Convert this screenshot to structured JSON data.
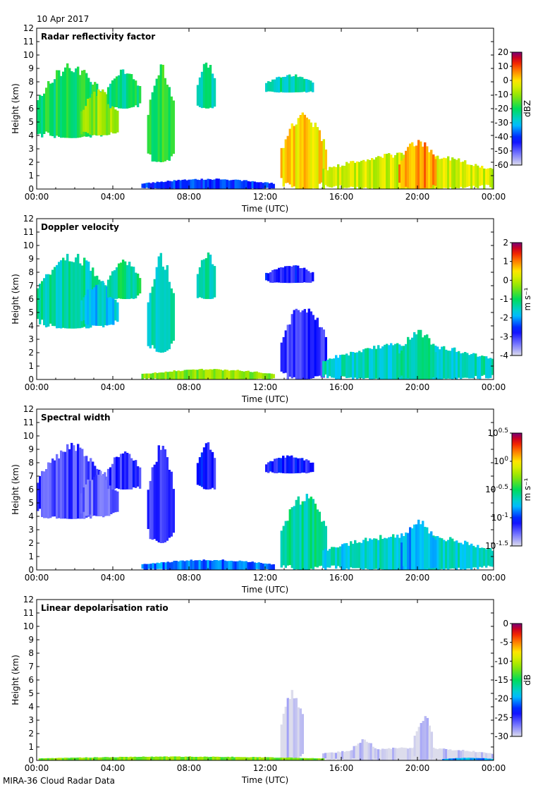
{
  "figure": {
    "date": "10 Apr 2017",
    "footer": "MIRA-36 Cloud Radar Data"
  },
  "chart_data": [
    {
      "type": "heatmap",
      "title": "Radar reflectivity factor",
      "xlabel": "Time (UTC)",
      "ylabel": "Height (km)",
      "xticks": [
        "00:00",
        "04:00",
        "08:00",
        "12:00",
        "16:00",
        "20:00",
        "00:00"
      ],
      "xlim_hours": [
        0,
        24
      ],
      "ylim": [
        0,
        12
      ],
      "yticks": [
        "0",
        "1",
        "2",
        "3",
        "4",
        "5",
        "6",
        "7",
        "8",
        "9",
        "10",
        "11",
        "12"
      ],
      "colorbar": {
        "unit_label": "dBZ",
        "ticks": [
          "20",
          "10",
          "0",
          "-10",
          "-20",
          "-30",
          "-40",
          "-50",
          "-60"
        ],
        "range": [
          -60,
          20
        ]
      },
      "echoes": [
        {
          "t0": 0.0,
          "t1": 3.6,
          "h0": 3.8,
          "h1": 9.5,
          "v": -20
        },
        {
          "t0": 2.3,
          "t1": 4.2,
          "h0": 4.0,
          "h1": 7.5,
          "v": -10
        },
        {
          "t0": 3.7,
          "t1": 5.4,
          "h0": 6.0,
          "h1": 9.0,
          "v": -22
        },
        {
          "t0": 5.8,
          "t1": 7.2,
          "h0": 2.0,
          "h1": 9.5,
          "v": -18
        },
        {
          "t0": 8.4,
          "t1": 9.4,
          "h0": 6.0,
          "h1": 9.6,
          "v": -25
        },
        {
          "t0": 12.0,
          "t1": 14.5,
          "h0": 7.2,
          "h1": 8.6,
          "v": -25
        },
        {
          "t0": 12.8,
          "t1": 15.2,
          "h0": 0.0,
          "h1": 5.8,
          "v": 0
        },
        {
          "t0": 15.0,
          "t1": 24.0,
          "h0": 0.0,
          "h1": 2.8,
          "v": -5
        },
        {
          "t0": 19.0,
          "t1": 21.0,
          "h0": 0.0,
          "h1": 3.8,
          "v": 5
        },
        {
          "t0": 5.5,
          "t1": 12.5,
          "h0": 0.0,
          "h1": 0.8,
          "v": -40
        }
      ]
    },
    {
      "type": "heatmap",
      "title": "Doppler velocity",
      "xlabel": "Time (UTC)",
      "ylabel": "Height (km)",
      "xticks": [
        "00:00",
        "04:00",
        "08:00",
        "12:00",
        "16:00",
        "20:00",
        "00:00"
      ],
      "xlim_hours": [
        0,
        24
      ],
      "ylim": [
        0,
        12
      ],
      "yticks": [
        "0",
        "1",
        "2",
        "3",
        "4",
        "5",
        "6",
        "7",
        "8",
        "9",
        "10",
        "11",
        "12"
      ],
      "colorbar": {
        "unit_label": "m s⁻¹",
        "ticks": [
          "2",
          "1",
          "0",
          "-1",
          "-2",
          "-3",
          "-4"
        ],
        "range": [
          -4,
          2
        ]
      },
      "echoes": [
        {
          "t0": 0.0,
          "t1": 3.6,
          "h0": 3.8,
          "h1": 9.5,
          "v": -1.4
        },
        {
          "t0": 2.3,
          "t1": 4.2,
          "h0": 4.0,
          "h1": 7.5,
          "v": -1.8
        },
        {
          "t0": 3.7,
          "t1": 5.4,
          "h0": 6.0,
          "h1": 9.0,
          "v": -1.2
        },
        {
          "t0": 5.8,
          "t1": 7.2,
          "h0": 2.0,
          "h1": 9.5,
          "v": -1.6
        },
        {
          "t0": 8.4,
          "t1": 9.4,
          "h0": 6.0,
          "h1": 9.6,
          "v": -1.3
        },
        {
          "t0": 12.0,
          "t1": 14.5,
          "h0": 7.2,
          "h1": 8.6,
          "v": -2.8
        },
        {
          "t0": 12.8,
          "t1": 15.2,
          "h0": 0.0,
          "h1": 5.8,
          "v": -3.0
        },
        {
          "t0": 15.0,
          "t1": 24.0,
          "h0": 0.0,
          "h1": 2.8,
          "v": -1.5
        },
        {
          "t0": 19.0,
          "t1": 21.0,
          "h0": 0.0,
          "h1": 3.8,
          "v": -1.2
        },
        {
          "t0": 5.5,
          "t1": 12.5,
          "h0": 0.0,
          "h1": 0.8,
          "v": -0.3
        }
      ]
    },
    {
      "type": "heatmap",
      "title": "Spectral width",
      "xlabel": "Time (UTC)",
      "ylabel": "Height (km)",
      "xticks": [
        "00:00",
        "04:00",
        "08:00",
        "12:00",
        "16:00",
        "20:00",
        "00:00"
      ],
      "xlim_hours": [
        0,
        24
      ],
      "ylim": [
        0,
        12
      ],
      "yticks": [
        "0",
        "1",
        "2",
        "3",
        "4",
        "5",
        "6",
        "7",
        "8",
        "9",
        "10",
        "11",
        "12"
      ],
      "colorbar": {
        "unit_label": "m s⁻¹",
        "ticks": [
          "10^0.5",
          "10^0",
          "10^-0.5",
          "10^-1",
          "10^-1.5"
        ],
        "range": [
          -1.5,
          0.5
        ]
      },
      "echoes": [
        {
          "t0": 0.0,
          "t1": 3.6,
          "h0": 3.8,
          "h1": 9.5,
          "v": -1.2
        },
        {
          "t0": 2.3,
          "t1": 4.2,
          "h0": 4.0,
          "h1": 7.5,
          "v": -1.25
        },
        {
          "t0": 3.7,
          "t1": 5.4,
          "h0": 6.0,
          "h1": 9.0,
          "v": -1.15
        },
        {
          "t0": 5.8,
          "t1": 7.2,
          "h0": 2.0,
          "h1": 9.5,
          "v": -1.2
        },
        {
          "t0": 8.4,
          "t1": 9.4,
          "h0": 6.0,
          "h1": 9.6,
          "v": -1.1
        },
        {
          "t0": 12.0,
          "t1": 14.5,
          "h0": 7.2,
          "h1": 8.6,
          "v": -1.1
        },
        {
          "t0": 12.8,
          "t1": 15.2,
          "h0": 0.0,
          "h1": 5.8,
          "v": -0.6
        },
        {
          "t0": 15.0,
          "t1": 24.0,
          "h0": 0.0,
          "h1": 2.8,
          "v": -0.7
        },
        {
          "t0": 19.0,
          "t1": 21.0,
          "h0": 0.0,
          "h1": 3.8,
          "v": -0.8
        },
        {
          "t0": 5.5,
          "t1": 12.5,
          "h0": 0.0,
          "h1": 0.8,
          "v": -0.9
        }
      ]
    },
    {
      "type": "heatmap",
      "title": "Linear depolarisation ratio",
      "xlabel": "Time (UTC)",
      "ylabel": "Height (km)",
      "xticks": [
        "00:00",
        "04:00",
        "08:00",
        "12:00",
        "16:00",
        "20:00",
        "00:00"
      ],
      "xlim_hours": [
        0,
        24
      ],
      "ylim": [
        0,
        12
      ],
      "yticks": [
        "0",
        "1",
        "2",
        "3",
        "4",
        "5",
        "6",
        "7",
        "8",
        "9",
        "10",
        "11",
        "12"
      ],
      "colorbar": {
        "unit_label": "dB",
        "ticks": [
          "0",
          "-5",
          "-10",
          "-15",
          "-20",
          "-25",
          "-30"
        ],
        "range": [
          -30,
          0
        ]
      },
      "echoes": [
        {
          "t0": 12.8,
          "t1": 14.0,
          "h0": 0.0,
          "h1": 5.3,
          "v": -30
        },
        {
          "t0": 15.0,
          "t1": 24.0,
          "h0": 0.0,
          "h1": 1.0,
          "v": -30
        },
        {
          "t0": 19.8,
          "t1": 20.8,
          "h0": 0.0,
          "h1": 3.4,
          "v": -30
        },
        {
          "t0": 16.5,
          "t1": 17.8,
          "h0": 0.0,
          "h1": 1.6,
          "v": -30
        },
        {
          "t0": 0.1,
          "t1": 15.0,
          "h0": 0.0,
          "h1": 0.3,
          "v": -12
        },
        {
          "t0": 21.3,
          "t1": 24.0,
          "h0": 0.0,
          "h1": 0.2,
          "v": -20
        }
      ]
    }
  ]
}
